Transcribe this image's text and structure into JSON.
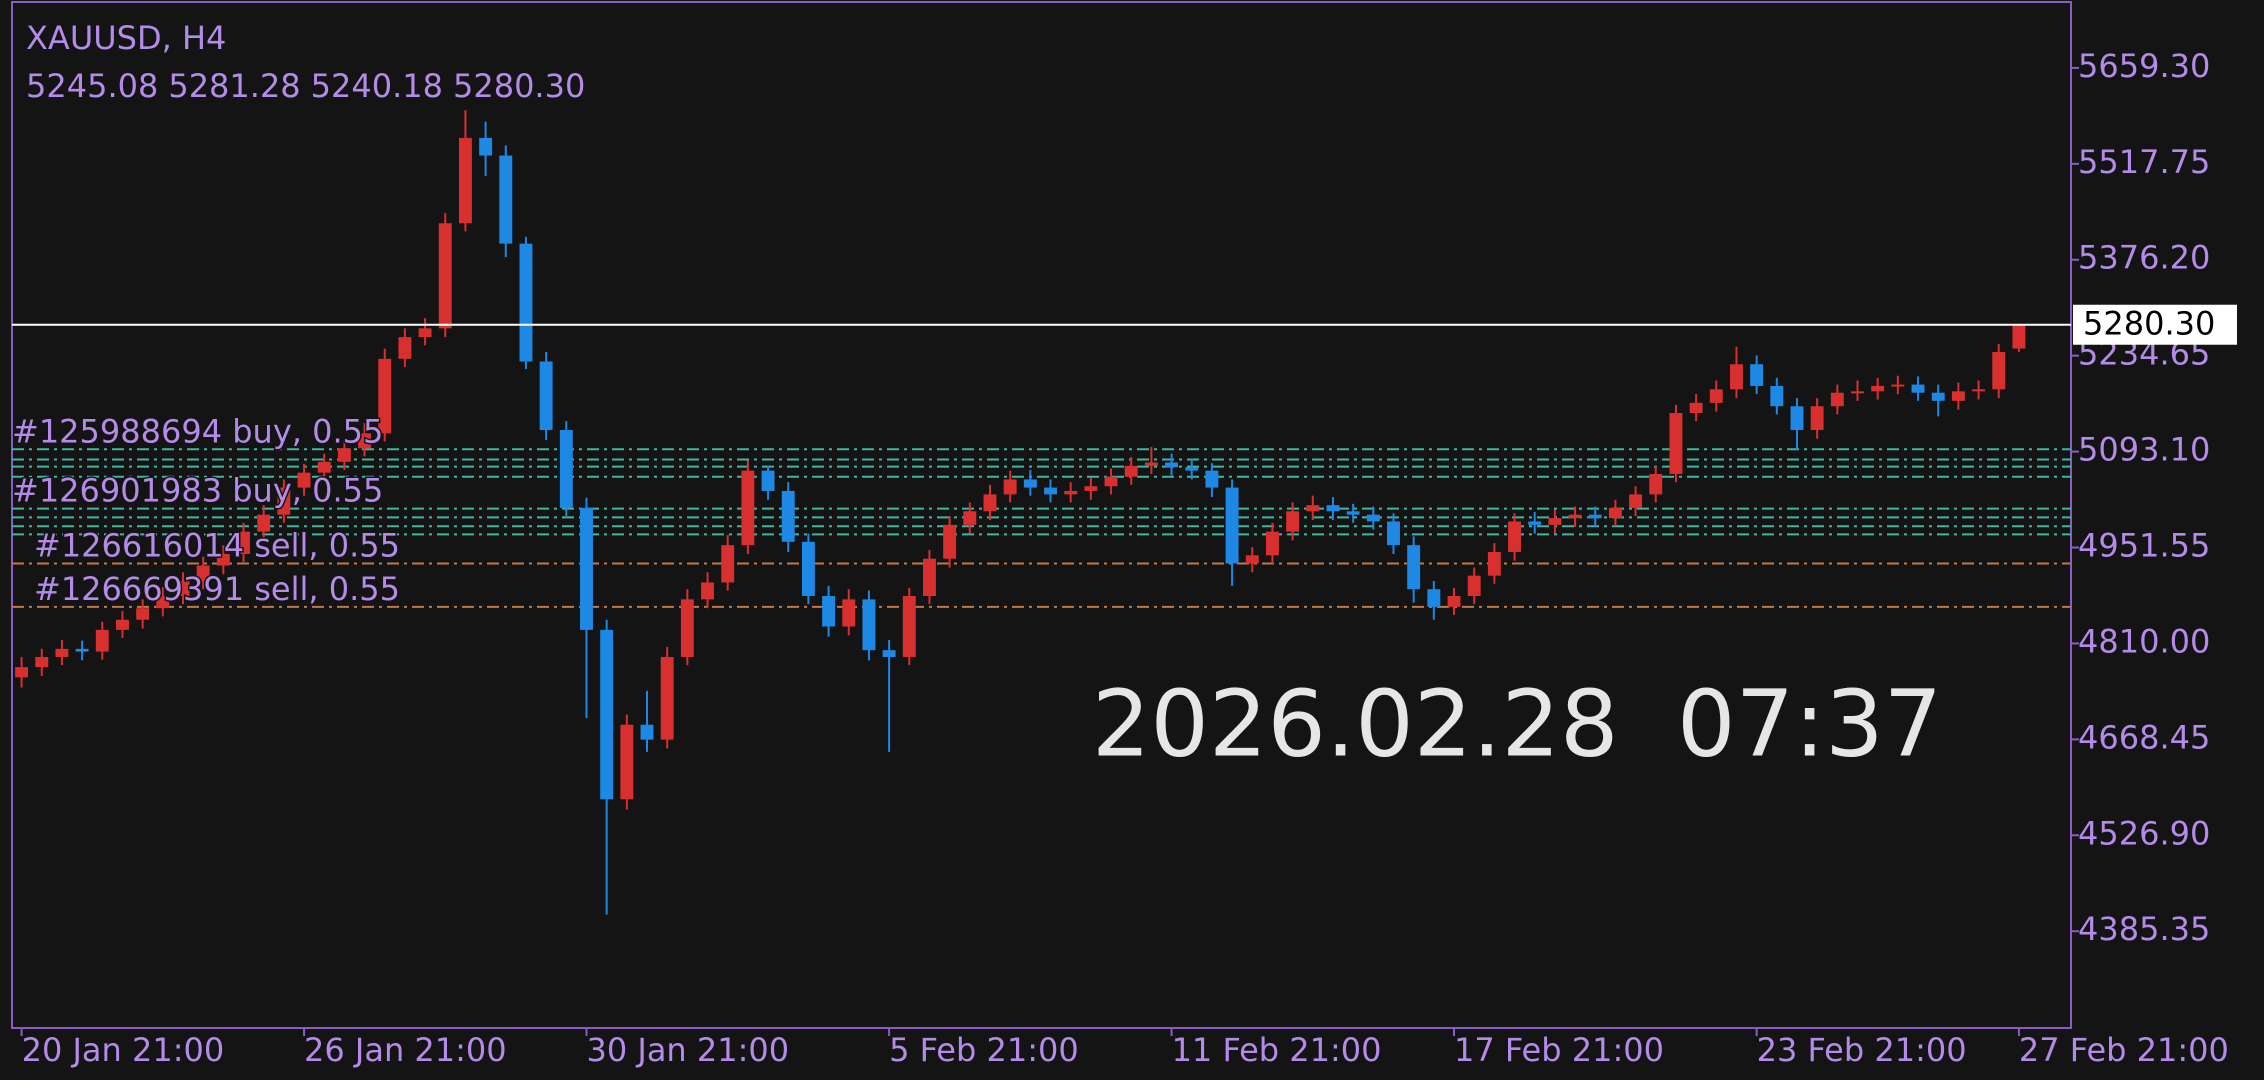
{
  "chart_data": {
    "type": "candlestick",
    "title": "XAUUSD, H4",
    "last_ohlc": [
      "5245.08",
      "5281.28",
      "5240.18",
      "5280.30"
    ],
    "clock": "2026.02.28  07:37",
    "up_color": "#d7302f",
    "down_color": "#1e88e5",
    "categories": [
      "20 Jan 21:00",
      null,
      null,
      null,
      null,
      null,
      null,
      null,
      null,
      null,
      null,
      null,
      null,
      null,
      "26 Jan 21:00",
      null,
      null,
      null,
      null,
      null,
      null,
      null,
      null,
      null,
      null,
      null,
      null,
      null,
      "30 Jan 21:00",
      null,
      null,
      null,
      null,
      null,
      null,
      null,
      null,
      null,
      null,
      null,
      null,
      null,
      null,
      "5 Feb 21:00",
      null,
      null,
      null,
      null,
      null,
      null,
      null,
      null,
      null,
      null,
      null,
      null,
      null,
      "11 Feb 21:00",
      null,
      null,
      null,
      null,
      null,
      null,
      null,
      null,
      null,
      null,
      null,
      null,
      null,
      "17 Feb 21:00",
      null,
      null,
      null,
      null,
      null,
      null,
      null,
      null,
      null,
      null,
      null,
      null,
      null,
      null,
      "23 Feb 21:00",
      null,
      null,
      null,
      null,
      null,
      null,
      null,
      null,
      null,
      null,
      null,
      null,
      "27 Feb 21:00"
    ],
    "open": [
      4760,
      4775,
      4790,
      4802,
      4798,
      4830,
      4845,
      4862,
      4880,
      4902,
      4925,
      4942,
      4975,
      5000,
      5040,
      5062,
      5078,
      5098,
      5120,
      5230,
      5262,
      5275,
      5430,
      5556,
      5530,
      5400,
      5226,
      5125,
      5010,
      4830,
      4580,
      4690,
      4668,
      4790,
      4875,
      4900,
      4955,
      5065,
      5035,
      4960,
      4880,
      4835,
      4875,
      4800,
      4790,
      4880,
      4935,
      4985,
      5005,
      5030,
      5052,
      5040,
      5030,
      5035,
      5042,
      5056,
      5072,
      5077,
      5070,
      5065,
      5040,
      4928,
      4940,
      4975,
      5005,
      5014,
      5005,
      5000,
      4990,
      4955,
      4890,
      4864,
      4880,
      4910,
      4945,
      4990,
      4985,
      4995,
      5000,
      4995,
      5010,
      5030,
      5060,
      5150,
      5165,
      5185,
      5222,
      5190,
      5160,
      5125,
      5160,
      5180,
      5182,
      5190,
      5192,
      5180,
      5168,
      5182,
      5185,
      5245.08
    ],
    "high": [
      4790,
      4802,
      4815,
      4814,
      4842,
      4858,
      4875,
      4893,
      4915,
      4938,
      4955,
      4988,
      5014,
      5052,
      5075,
      5090,
      5110,
      5135,
      5245,
      5275,
      5290,
      5445,
      5597,
      5580,
      5545,
      5410,
      5240,
      5138,
      5025,
      4845,
      4705,
      4740,
      4805,
      4890,
      4915,
      4970,
      5080,
      5072,
      5048,
      4972,
      4895,
      4890,
      4888,
      4815,
      4892,
      4948,
      4998,
      5018,
      5044,
      5065,
      5066,
      5052,
      5048,
      5055,
      5068,
      5085,
      5100,
      5090,
      5082,
      5076,
      5052,
      4952,
      4988,
      5018,
      5028,
      5026,
      5016,
      5012,
      5002,
      4968,
      4902,
      4892,
      4922,
      4958,
      5002,
      5004,
      5008,
      5012,
      5012,
      5022,
      5042,
      5072,
      5162,
      5178,
      5198,
      5248,
      5235,
      5202,
      5172,
      5172,
      5192,
      5198,
      5202,
      5205,
      5204,
      5192,
      5195,
      5198,
      5252,
      5281.28
    ],
    "low": [
      4745,
      4762,
      4778,
      4785,
      4786,
      4818,
      4832,
      4850,
      4868,
      4890,
      4912,
      4930,
      4962,
      4988,
      5028,
      5050,
      5066,
      5086,
      5108,
      5218,
      5250,
      5262,
      5418,
      5500,
      5380,
      5215,
      5110,
      4998,
      4700,
      4410,
      4565,
      4650,
      4655,
      4778,
      4862,
      4888,
      4942,
      5022,
      4945,
      4868,
      4820,
      4822,
      4785,
      4650,
      4778,
      4868,
      4922,
      4972,
      4992,
      5018,
      5028,
      5018,
      5018,
      5022,
      5030,
      5044,
      5060,
      5058,
      5052,
      5026,
      4895,
      4915,
      4928,
      4962,
      4992,
      4992,
      4988,
      4978,
      4942,
      4870,
      4845,
      4852,
      4868,
      4898,
      4932,
      4972,
      4972,
      4982,
      4982,
      4983,
      4998,
      5018,
      5048,
      5138,
      5152,
      5172,
      5178,
      5148,
      5095,
      5112,
      5148,
      5168,
      5170,
      5178,
      5168,
      5145,
      5155,
      5170,
      5172,
      5240.18
    ],
    "close": [
      4775,
      4790,
      4802,
      4798,
      4830,
      4845,
      4862,
      4880,
      4902,
      4925,
      4942,
      4975,
      5000,
      5040,
      5062,
      5078,
      5098,
      5120,
      5230,
      5262,
      5275,
      5430,
      5556,
      5530,
      5400,
      5226,
      5125,
      5010,
      4830,
      4580,
      4690,
      4668,
      4790,
      4875,
      4900,
      4955,
      5065,
      5035,
      4960,
      4880,
      4835,
      4875,
      4800,
      4790,
      4880,
      4935,
      4985,
      5005,
      5030,
      5052,
      5040,
      5030,
      5035,
      5042,
      5056,
      5072,
      5077,
      5070,
      5065,
      5040,
      4928,
      4940,
      4975,
      5005,
      5014,
      5005,
      5000,
      4990,
      4955,
      4890,
      4864,
      4880,
      4910,
      4945,
      4990,
      4985,
      4995,
      5000,
      4995,
      5010,
      5030,
      5060,
      5150,
      5165,
      5185,
      5222,
      5190,
      5160,
      5125,
      5160,
      5180,
      5182,
      5190,
      5192,
      5180,
      5168,
      5182,
      5185,
      5240,
      5280.3
    ],
    "ylim": [
      4242.5,
      5759.5
    ],
    "yticks": [
      {
        "value": 5659.3,
        "label": "5659.30"
      },
      {
        "value": 5517.75,
        "label": "5517.75"
      },
      {
        "value": 5376.2,
        "label": "5376.20"
      },
      {
        "value": 5234.65,
        "label": "5234.65"
      },
      {
        "value": 5093.1,
        "label": "5093.10"
      },
      {
        "value": 4951.55,
        "label": "4951.55"
      },
      {
        "value": 4810,
        "label": "4810.00"
      },
      {
        "value": 4668.45,
        "label": "4668.45"
      },
      {
        "value": 4526.9,
        "label": "4526.90"
      },
      {
        "value": 4385.35,
        "label": "4385.35"
      }
    ],
    "current_price": {
      "value": 5280.3,
      "label": "5280.30"
    },
    "orders": [
      {
        "price": 5096.5,
        "color": "#3fb6a0",
        "label": "#125988694 buy, 0.55"
      },
      {
        "price": 5081.5,
        "color": "#3fb6a0"
      },
      {
        "price": 5070.9,
        "color": "#3fb6a0"
      },
      {
        "price": 5056,
        "color": "#3fb6a0"
      },
      {
        "price": 5009,
        "color": "#3fb6a0",
        "label": "#126901983 buy, 0.55"
      },
      {
        "price": 4996,
        "color": "#3fb6a0"
      },
      {
        "price": 4983,
        "color": "#3fb6a0"
      },
      {
        "price": 4971,
        "color": "#3fb6a0"
      },
      {
        "price": 4928,
        "color": "#c0784a",
        "label": "#126616014 sell, 0.55"
      },
      {
        "price": 4864,
        "color": "#c0784a",
        "label": "#126669391 sell, 0.55"
      }
    ]
  }
}
